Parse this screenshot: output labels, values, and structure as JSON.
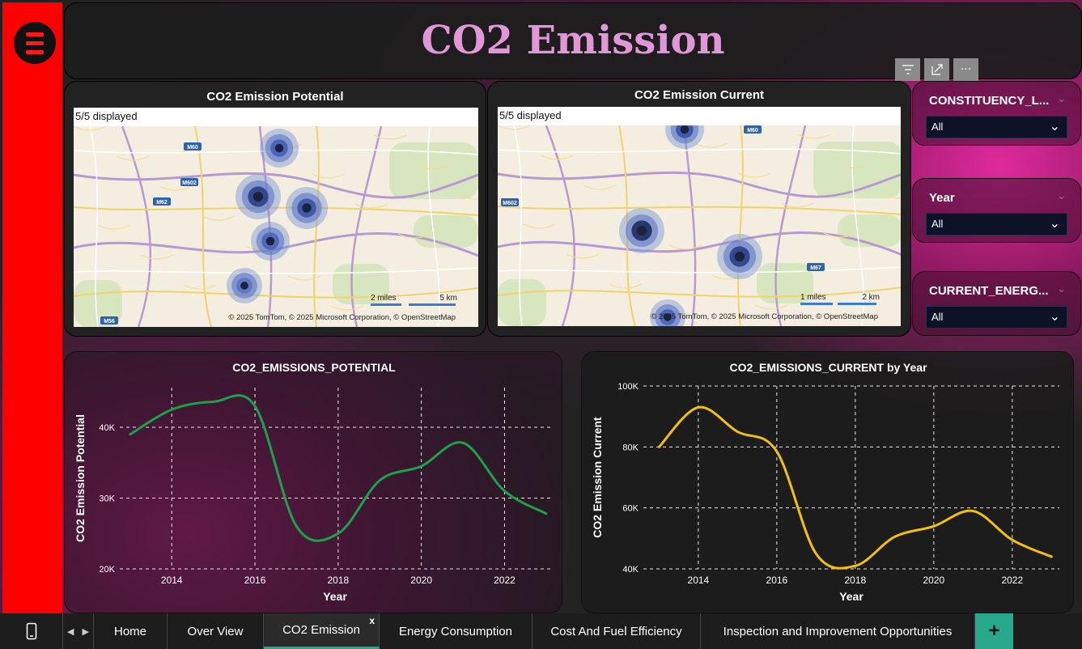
{
  "page": {
    "title": "CO2 Emission"
  },
  "toolbar": {
    "icons": [
      "filter-icon",
      "focus-mode-icon",
      "more-options-icon"
    ],
    "more_label": "···"
  },
  "maps": [
    {
      "title": "CO2 Emission Potential",
      "displayed": "5/5 displayed",
      "road_labels": [
        "M60",
        "M602",
        "M62",
        "M56"
      ],
      "scale_miles": "2 miles",
      "scale_km": "5 km",
      "attribution": "© 2025 TomTom, © 2025 Microsoft Corporation, © OpenStreetMap"
    },
    {
      "title": "CO2 Emission Current",
      "displayed": "5/5 displayed",
      "road_labels": [
        "M602",
        "M67",
        "M60"
      ],
      "scale_miles": "1 miles",
      "scale_km": "2 km",
      "attribution": "© 2025 TomTom, © 2025 Microsoft Corporation, © OpenStreetMap"
    }
  ],
  "slicers": [
    {
      "label": "CONSTITUENCY_L...",
      "value": "All"
    },
    {
      "label": "Year",
      "value": "All"
    },
    {
      "label": "CURRENT_ENERG...",
      "value": "All"
    }
  ],
  "chart_data": [
    {
      "type": "line",
      "title": "CO2_EMISSIONS_POTENTIAL",
      "xlabel": "Year",
      "ylabel": "CO2 Emission Potential",
      "x": [
        2013,
        2014,
        2015,
        2016,
        2017,
        2018,
        2019,
        2020,
        2021,
        2022,
        2023
      ],
      "y": [
        39000,
        42500,
        43600,
        43000,
        26000,
        25000,
        32500,
        34500,
        37800,
        31000,
        27800
      ],
      "xticks": [
        "2014",
        "2016",
        "2018",
        "2020",
        "2022"
      ],
      "yticks": [
        "20K",
        "30K",
        "40K"
      ],
      "xlim": [
        2012.75,
        2023.1
      ],
      "ylim": [
        20000,
        45600
      ],
      "color": "#1aa14c",
      "grid": true
    },
    {
      "type": "line",
      "title": "CO2_EMISSIONS_CURRENT by Year",
      "xlabel": "Year",
      "ylabel": "CO2 Emission Current",
      "x": [
        2013,
        2014,
        2015,
        2016,
        2017,
        2018,
        2019,
        2020,
        2021,
        2022,
        2023
      ],
      "y": [
        80000,
        93000,
        85000,
        78500,
        45000,
        41000,
        50500,
        54000,
        59000,
        49500,
        44000
      ],
      "xticks": [
        "2014",
        "2016",
        "2018",
        "2020",
        "2022"
      ],
      "yticks": [
        "40K",
        "60K",
        "80K",
        "100K"
      ],
      "xlim": [
        2012.6,
        2023.2
      ],
      "ylim": [
        40000,
        100000
      ],
      "color": "#f5c00a",
      "grid": true
    }
  ],
  "tabs": [
    {
      "label": "Home",
      "active": false
    },
    {
      "label": "Over View",
      "active": false
    },
    {
      "label": "CO2 Emission",
      "active": true,
      "close": "x"
    },
    {
      "label": "Energy Consumption",
      "active": false
    },
    {
      "label": "Cost And Fuel Efficiency",
      "active": false
    },
    {
      "label": "Inspection and Improvement Opportunities",
      "active": false
    }
  ],
  "add_tab": "+"
}
